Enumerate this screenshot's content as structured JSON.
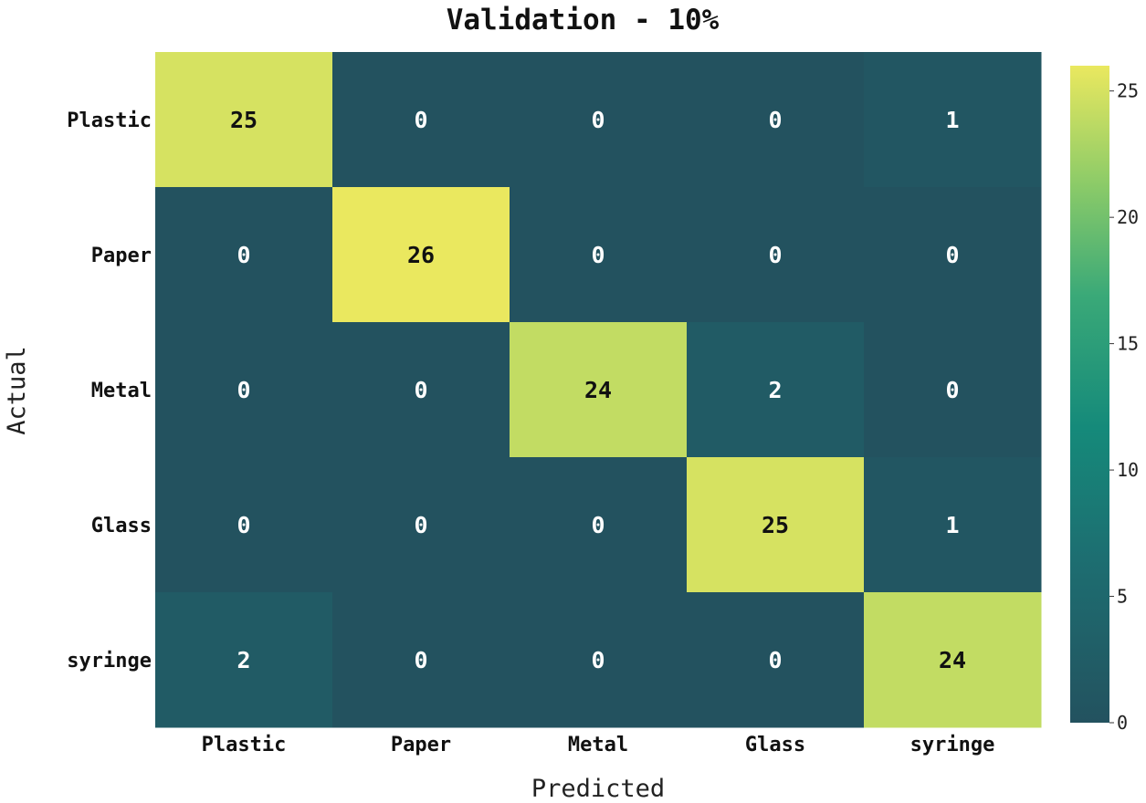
{
  "chart_data": {
    "type": "heatmap",
    "title": "Validation - 10%",
    "xlabel": "Predicted",
    "ylabel": "Actual",
    "x_categories": [
      "Plastic",
      "Paper",
      "Metal",
      "Glass",
      "syringe"
    ],
    "y_categories": [
      "Plastic",
      "Paper",
      "Metal",
      "Glass",
      "syringe"
    ],
    "values": [
      [
        25,
        0,
        0,
        0,
        1
      ],
      [
        0,
        26,
        0,
        0,
        0
      ],
      [
        0,
        0,
        24,
        2,
        0
      ],
      [
        0,
        0,
        0,
        25,
        1
      ],
      [
        2,
        0,
        0,
        0,
        24
      ]
    ],
    "colorbar": {
      "min": 0,
      "max": 26,
      "ticks": [
        0,
        5,
        10,
        15,
        20,
        25
      ]
    },
    "colormap": "viridis (truncated, dark teal to yellow)",
    "colors": {
      "low": "#23525f",
      "high": "#eae85f",
      "dark_text": "#111111",
      "light_text": "#ffffff"
    }
  }
}
